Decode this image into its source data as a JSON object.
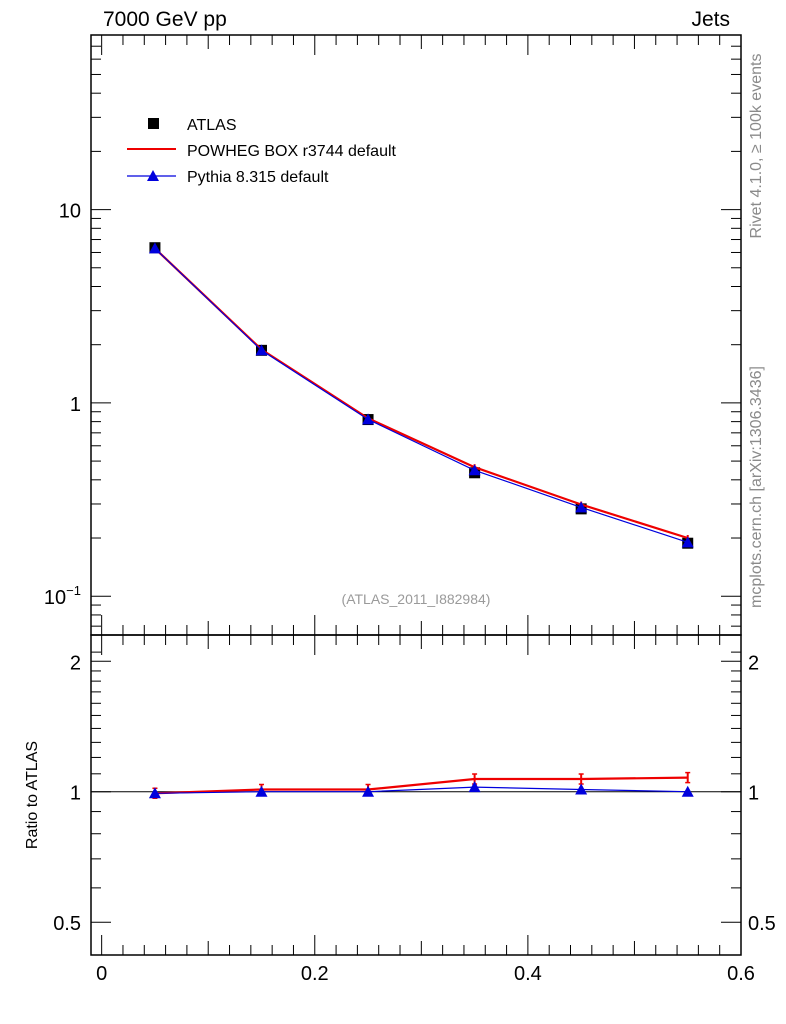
{
  "header": {
    "left_title": "7000 GeV pp",
    "right_title": "Jets"
  },
  "side_texts": {
    "rivet": "Rivet 4.1.0, ≥ 100k events",
    "mcplots": "mcplots.cern.ch [arXiv:1306.3436]"
  },
  "chart_data": [
    {
      "type": "line",
      "panel": "main",
      "yscale": "log",
      "ylim": [
        0.063,
        80
      ],
      "xlim": [
        -0.01,
        0.6
      ],
      "annotation": "(ATLAS_2011_I882984)",
      "y_ticks": [
        {
          "value": 10,
          "label": "10"
        },
        {
          "value": 1,
          "label": "1"
        },
        {
          "value": 0.1,
          "label": "10^-1"
        }
      ],
      "legend": {
        "position": "top-left",
        "entries": [
          "ATLAS",
          "POWHEG BOX r3744 default",
          "Pythia 8.315 default"
        ]
      },
      "x": [
        0.05,
        0.15,
        0.25,
        0.35,
        0.45,
        0.55
      ],
      "series": [
        {
          "name": "ATLAS",
          "color": "#000000",
          "marker": "square",
          "values": [
            6.35,
            1.87,
            0.82,
            0.435,
            0.283,
            0.188
          ]
        },
        {
          "name": "POWHEG BOX r3744 default",
          "color": "#ee0000",
          "marker": "none",
          "values": [
            6.3,
            1.89,
            0.832,
            0.465,
            0.298,
            0.2
          ]
        },
        {
          "name": "Pythia 8.315 default",
          "color": "#0000dd",
          "marker": "triangle",
          "values": [
            6.3,
            1.87,
            0.822,
            0.448,
            0.288,
            0.19
          ]
        }
      ]
    },
    {
      "type": "line",
      "panel": "ratio",
      "yscale": "log",
      "ylim": [
        0.42,
        2.3
      ],
      "xlim": [
        -0.01,
        0.6
      ],
      "ylabel": "Ratio to ATLAS",
      "y_ticks": [
        {
          "value": 2,
          "label": "2"
        },
        {
          "value": 1,
          "label": "1"
        },
        {
          "value": 0.5,
          "label": "0.5"
        }
      ],
      "x_ticks": [
        {
          "value": 0,
          "label": "0"
        },
        {
          "value": 0.2,
          "label": "0.2"
        },
        {
          "value": 0.4,
          "label": "0.4"
        },
        {
          "value": 0.6,
          "label": "0.6"
        }
      ],
      "x": [
        0.05,
        0.15,
        0.25,
        0.35,
        0.45,
        0.55
      ],
      "series": [
        {
          "name": "POWHEG BOX r3744 default",
          "color": "#ee0000",
          "values": [
            0.992,
            1.012,
            1.012,
            1.07,
            1.07,
            1.078
          ]
        },
        {
          "name": "Pythia 8.315 default",
          "color": "#0000dd",
          "values": [
            0.992,
            1.0,
            1.0,
            1.025,
            1.012,
            1.0
          ]
        }
      ]
    }
  ]
}
